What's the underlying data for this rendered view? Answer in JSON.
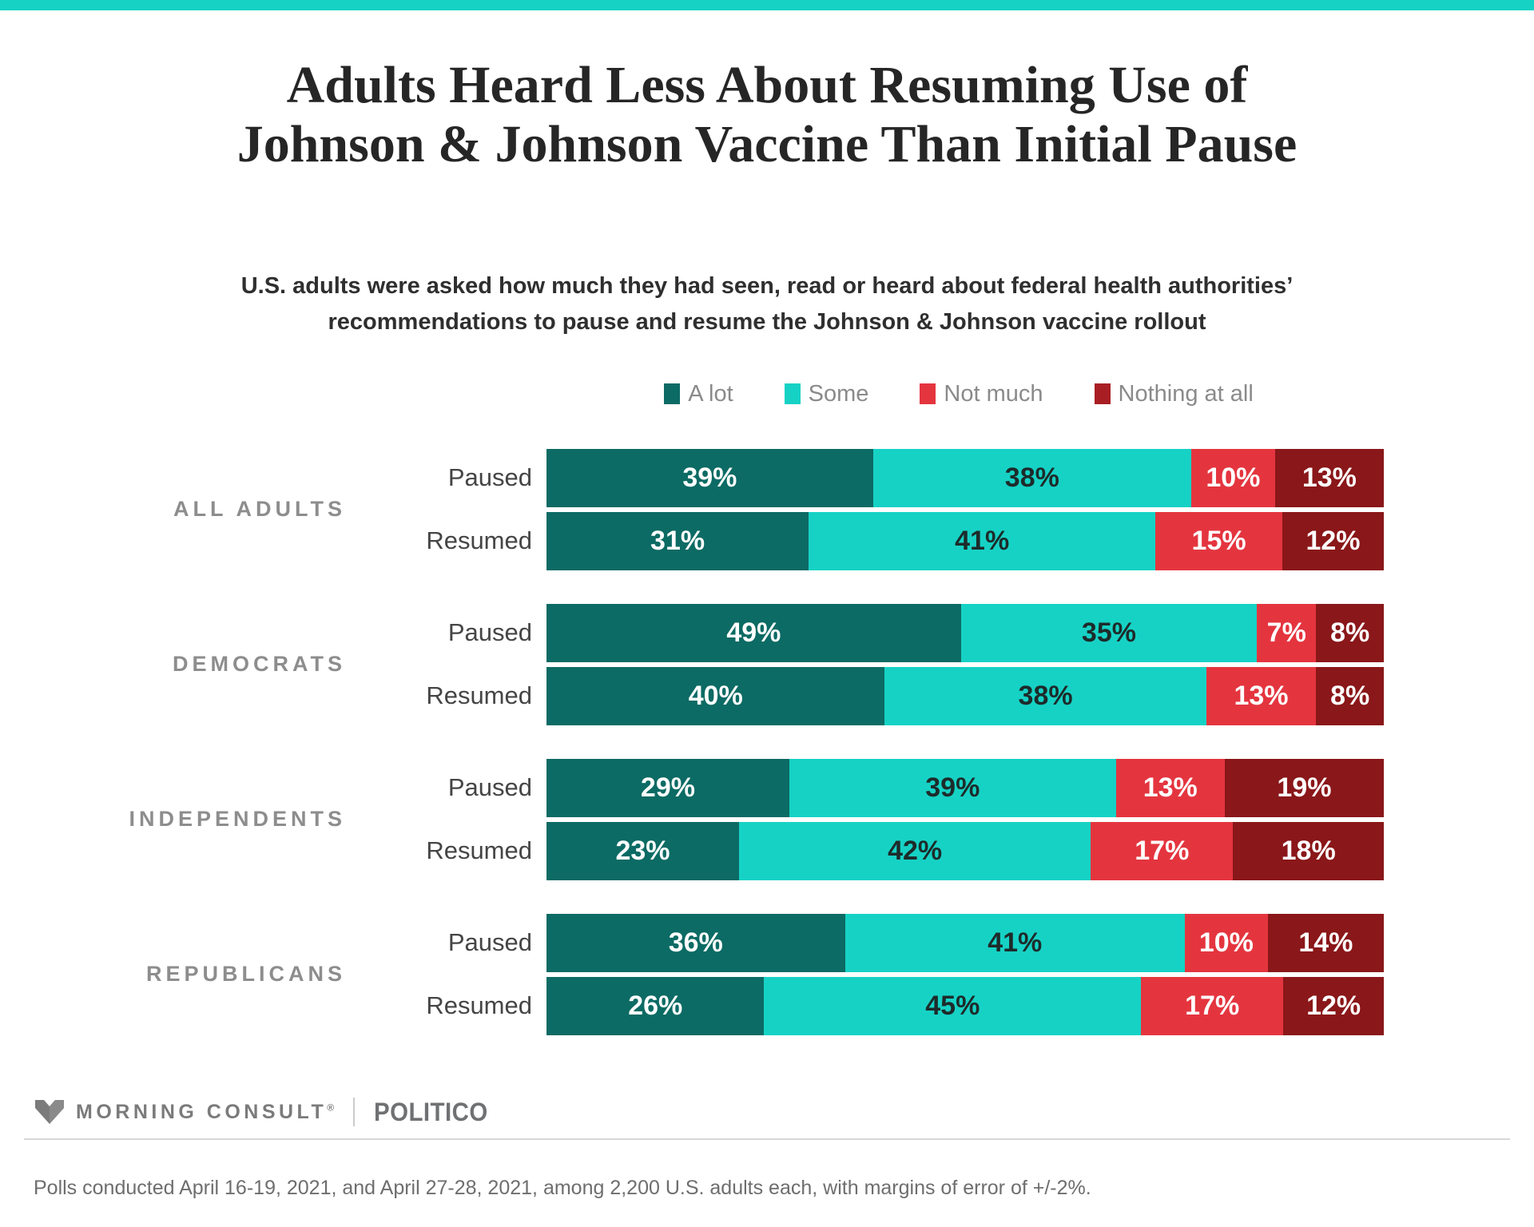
{
  "theme": {
    "accent_color": "#15D2C4"
  },
  "header": {
    "title_line1": "Adults Heard Less About Resuming Use of",
    "title_line2": "Johnson & Johnson Vaccine Than Initial Pause",
    "subtitle_line1": "U.S. adults were asked how much they had seen, read or heard about federal health authorities’",
    "subtitle_line2": "recommendations to pause and resume the Johnson & Johnson vaccine rollout"
  },
  "chart_data": {
    "type": "bar",
    "orientation": "horizontal",
    "stacked": true,
    "unit": "%",
    "xlim": [
      0,
      100
    ],
    "legend_position": "top",
    "series_names": [
      "A lot",
      "Some",
      "Not much",
      "Nothing at all"
    ],
    "series_colors": [
      "#0C6B64",
      "#16D2C5",
      "#E4353F",
      "#8A1719"
    ],
    "legend_swatch_colors": [
      "#0C6B64",
      "#16D2C5",
      "#E4353F",
      "#A91E23"
    ],
    "value_label_colors": [
      "#FFFFFF",
      "#1D2B2A",
      "#FFFFFF",
      "#FFFFFF"
    ],
    "groups": [
      {
        "label": "ALL ADULTS",
        "rows": [
          {
            "label": "Paused",
            "values": [
              39,
              38,
              10,
              13
            ]
          },
          {
            "label": "Resumed",
            "values": [
              31,
              41,
              15,
              12
            ]
          }
        ]
      },
      {
        "label": "DEMOCRATS",
        "rows": [
          {
            "label": "Paused",
            "values": [
              49,
              35,
              7,
              8
            ]
          },
          {
            "label": "Resumed",
            "values": [
              40,
              38,
              13,
              8
            ]
          }
        ]
      },
      {
        "label": "INDEPENDENTS",
        "rows": [
          {
            "label": "Paused",
            "values": [
              29,
              39,
              13,
              19
            ]
          },
          {
            "label": "Resumed",
            "values": [
              23,
              42,
              17,
              18
            ]
          }
        ]
      },
      {
        "label": "REPUBLICANS",
        "rows": [
          {
            "label": "Paused",
            "values": [
              36,
              41,
              10,
              14
            ]
          },
          {
            "label": "Resumed",
            "values": [
              26,
              45,
              17,
              12
            ]
          }
        ]
      }
    ]
  },
  "footer": {
    "brand": "MORNING CONSULT",
    "registered_mark": "®",
    "divider": "|",
    "partner": "POLITICO",
    "footnote": "Polls conducted April 16-19, 2021, and April 27-28, 2021, among 2,200 U.S. adults each, with margins of error of +/-2%."
  }
}
